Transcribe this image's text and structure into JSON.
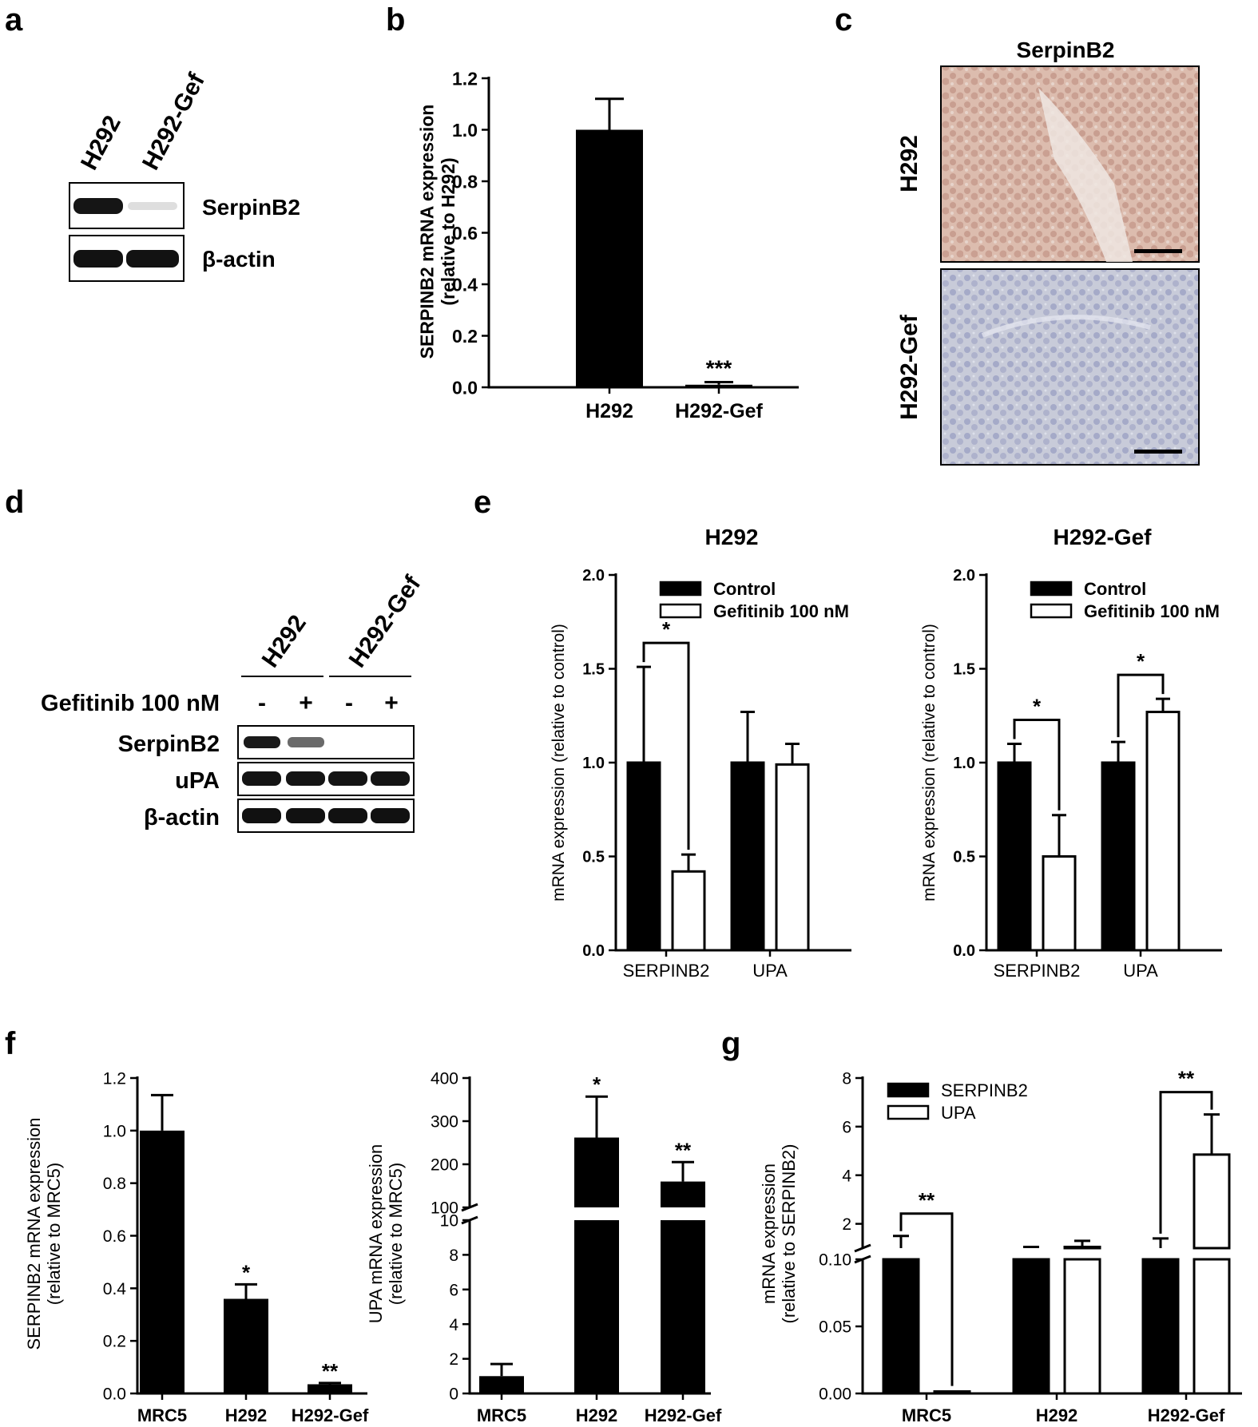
{
  "panels": {
    "a": "a",
    "b": "b",
    "c": "c",
    "d": "d",
    "e": "e",
    "f": "f",
    "g": "g"
  },
  "blot_a": {
    "lanes": [
      "H292",
      "H292-Gef"
    ],
    "rows": [
      "SerpinB2",
      "β-actin"
    ]
  },
  "ihc_c": {
    "title": "SerpinB2",
    "rows": [
      "H292",
      "H292-Gef"
    ]
  },
  "blot_d": {
    "groups": [
      "H292",
      "H292-Gef"
    ],
    "treatment_label": "Gefitinib 100 nM",
    "signs": [
      "-",
      "+",
      "-",
      "+"
    ],
    "rows": [
      "SerpinB2",
      "uPA",
      "β-actin"
    ]
  },
  "colors": {
    "bar_fill": "#000000",
    "open_fill": "#ffffff",
    "ihc_h292": "#d9b8a8",
    "ihc_gef": "#b9bfd6"
  },
  "chart_data": [
    {
      "id": "b",
      "type": "bar",
      "categories": [
        "H292",
        "H292-Gef"
      ],
      "values": [
        1.0,
        0.01
      ],
      "errors": [
        0.12,
        0.01
      ],
      "annotations": [
        "",
        "***"
      ],
      "ylabel": [
        "SERPINB2 mRNA expression",
        "(relative to H292)"
      ],
      "ylim": [
        0,
        1.2
      ],
      "yticks": [
        "0.0",
        "0.2",
        "0.4",
        "0.6",
        "0.8",
        "1.0",
        "1.2"
      ]
    },
    {
      "id": "e1",
      "type": "bar",
      "title": "H292",
      "categories": [
        "SERPINB2",
        "UPA"
      ],
      "series": [
        {
          "name": "Control",
          "values": [
            1.0,
            1.0
          ],
          "errors": [
            0.51,
            0.27
          ]
        },
        {
          "name": "Gefitinib 100 nM",
          "values": [
            0.42,
            0.99
          ],
          "errors": [
            0.09,
            0.11
          ]
        }
      ],
      "significance": [
        {
          "category": "SERPINB2",
          "label": "*"
        }
      ],
      "ylabel": "mRNA expression (relative to control)",
      "ylim": [
        0,
        2.0
      ],
      "yticks": [
        "0.0",
        "0.5",
        "1.0",
        "1.5",
        "2.0"
      ],
      "legend": "top-left"
    },
    {
      "id": "e2",
      "type": "bar",
      "title": "H292-Gef",
      "categories": [
        "SERPINB2",
        "UPA"
      ],
      "series": [
        {
          "name": "Control",
          "values": [
            1.0,
            1.0
          ],
          "errors": [
            0.1,
            0.11
          ]
        },
        {
          "name": "Gefitinib 100 nM",
          "values": [
            0.5,
            1.27
          ],
          "errors": [
            0.22,
            0.07
          ]
        }
      ],
      "significance": [
        {
          "category": "SERPINB2",
          "label": "*"
        },
        {
          "category": "UPA",
          "label": "*"
        }
      ],
      "ylabel": "mRNA expression (relative to control)",
      "ylim": [
        0,
        2.0
      ],
      "yticks": [
        "0.0",
        "0.5",
        "1.0",
        "1.5",
        "2.0"
      ],
      "legend": "top-left"
    },
    {
      "id": "f1",
      "type": "bar",
      "categories": [
        "MRC5",
        "H292",
        "H292-Gef"
      ],
      "values": [
        1.0,
        0.36,
        0.035
      ],
      "errors": [
        0.135,
        0.055,
        0.005
      ],
      "annotations": [
        "",
        "*",
        "**"
      ],
      "ylabel": [
        "SERPINB2 mRNA expression",
        "(relative to MRC5)"
      ],
      "ylim": [
        0,
        1.2
      ],
      "yticks": [
        "0.0",
        "0.2",
        "0.4",
        "0.6",
        "0.8",
        "1.0",
        "1.2"
      ]
    },
    {
      "id": "f2",
      "type": "bar",
      "broken_axis": true,
      "categories": [
        "MRC5",
        "H292",
        "H292-Gef"
      ],
      "values": [
        1.0,
        262,
        160
      ],
      "errors": [
        0.7,
        95,
        45
      ],
      "annotations": [
        "",
        "*",
        "**"
      ],
      "ylabel": [
        "UPA mRNA expression",
        "(relative to MRC5)"
      ],
      "ylim_lower": [
        0,
        10
      ],
      "ylim_upper": [
        100,
        400
      ],
      "yticks_lower": [
        "0",
        "2",
        "4",
        "6",
        "8",
        "10"
      ],
      "yticks_upper": [
        "100",
        "200",
        "300",
        "400"
      ]
    },
    {
      "id": "g",
      "type": "bar",
      "broken_axis": true,
      "categories": [
        "MRC5",
        "H292",
        "H292-Gef"
      ],
      "series": [
        {
          "name": "SERPINB2",
          "values": [
            1.0,
            1.0,
            1.0
          ],
          "errors": [
            0.5,
            0.05,
            0.4
          ]
        },
        {
          "name": "UPA",
          "values": [
            0.0015,
            1.05,
            4.85
          ],
          "errors": [
            0.0005,
            0.25,
            1.65
          ]
        }
      ],
      "significance": [
        {
          "category": "MRC5",
          "label": "**"
        },
        {
          "category": "H292-Gef",
          "label": "**"
        }
      ],
      "ylabel": [
        "mRNA expression",
        "(relative to SERPINB2)"
      ],
      "ylim_lower": [
        0,
        0.1
      ],
      "ylim_upper": [
        1,
        8
      ],
      "yticks_lower": [
        "0.00",
        "0.05",
        "0.10"
      ],
      "yticks_upper": [
        "2",
        "4",
        "6",
        "8"
      ],
      "legend": "top-left"
    }
  ]
}
